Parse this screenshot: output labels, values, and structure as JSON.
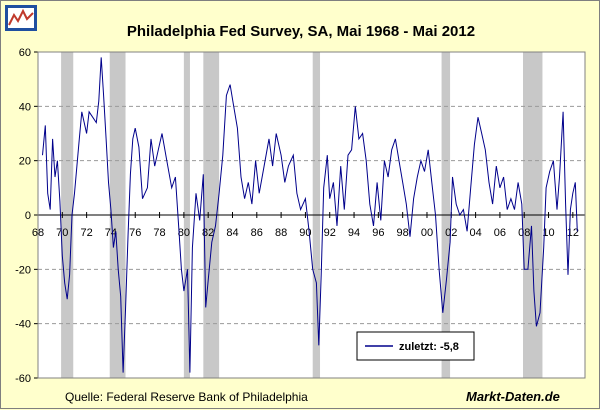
{
  "logo": {
    "name": "chart-logo-icon",
    "colors": [
      "#1f4fa0",
      "#c0392b"
    ]
  },
  "chart_data": {
    "type": "line",
    "title": "Philadelphia Fed Survey, SA, Mai 1968 - Mai 2012",
    "source": "Quelle: Federal Reserve Bank of Philadelphia",
    "watermark": "Markt-Daten.de",
    "xlim": [
      1968.0,
      2013.0
    ],
    "ylim": [
      -60,
      60
    ],
    "ytick_labels": [
      "60",
      "40",
      "20",
      "0",
      "-20",
      "-40",
      "-60"
    ],
    "ytick_values": [
      60,
      40,
      20,
      0,
      -20,
      -40,
      -60
    ],
    "xtick_labels": [
      "68",
      "70",
      "72",
      "74",
      "76",
      "78",
      "80",
      "82",
      "84",
      "86",
      "88",
      "90",
      "92",
      "94",
      "96",
      "98",
      "00",
      "02",
      "04",
      "06",
      "08",
      "10",
      "12"
    ],
    "xtick_values": [
      1968,
      1970,
      1972,
      1974,
      1976,
      1978,
      1980,
      1982,
      1984,
      1986,
      1988,
      1990,
      1992,
      1994,
      1996,
      1998,
      2000,
      2002,
      2004,
      2006,
      2008,
      2010,
      2012
    ],
    "grid": true,
    "legend_placement": "lower-right",
    "line_color": "#00008b",
    "recession_color": "#c8c8c8",
    "recessions": [
      [
        1969.9,
        1970.9
      ],
      [
        1973.9,
        1975.2
      ],
      [
        1980.0,
        1980.5
      ],
      [
        1981.6,
        1982.9
      ],
      [
        1990.6,
        1991.2
      ],
      [
        2001.2,
        2001.9
      ],
      [
        2007.9,
        2009.5
      ]
    ],
    "series": [
      {
        "name": "zuletzt: -5,8",
        "points": [
          [
            1968.37,
            22
          ],
          [
            1968.6,
            33
          ],
          [
            1968.8,
            8
          ],
          [
            1969.0,
            2
          ],
          [
            1969.2,
            28
          ],
          [
            1969.4,
            14
          ],
          [
            1969.6,
            20
          ],
          [
            1969.8,
            5
          ],
          [
            1970.0,
            -15
          ],
          [
            1970.2,
            -25
          ],
          [
            1970.4,
            -31
          ],
          [
            1970.6,
            -22
          ],
          [
            1970.8,
            0
          ],
          [
            1971.0,
            8
          ],
          [
            1971.2,
            18
          ],
          [
            1971.4,
            28
          ],
          [
            1971.6,
            38
          ],
          [
            1971.8,
            34
          ],
          [
            1972.0,
            30
          ],
          [
            1972.2,
            38
          ],
          [
            1972.5,
            36
          ],
          [
            1972.8,
            34
          ],
          [
            1973.0,
            42
          ],
          [
            1973.2,
            58
          ],
          [
            1973.4,
            44
          ],
          [
            1973.6,
            28
          ],
          [
            1973.8,
            12
          ],
          [
            1974.0,
            2
          ],
          [
            1974.2,
            -12
          ],
          [
            1974.4,
            -6
          ],
          [
            1974.6,
            -20
          ],
          [
            1974.8,
            -30
          ],
          [
            1975.0,
            -58
          ],
          [
            1975.2,
            -35
          ],
          [
            1975.4,
            -8
          ],
          [
            1975.6,
            15
          ],
          [
            1975.8,
            28
          ],
          [
            1976.0,
            32
          ],
          [
            1976.3,
            25
          ],
          [
            1976.6,
            6
          ],
          [
            1977.0,
            10
          ],
          [
            1977.3,
            28
          ],
          [
            1977.6,
            18
          ],
          [
            1977.9,
            24
          ],
          [
            1978.2,
            30
          ],
          [
            1978.6,
            20
          ],
          [
            1979.0,
            10
          ],
          [
            1979.3,
            14
          ],
          [
            1979.6,
            -6
          ],
          [
            1979.8,
            -20
          ],
          [
            1980.0,
            -28
          ],
          [
            1980.3,
            -20
          ],
          [
            1980.5,
            -58
          ],
          [
            1980.7,
            -12
          ],
          [
            1981.0,
            8
          ],
          [
            1981.3,
            -2
          ],
          [
            1981.6,
            15
          ],
          [
            1981.8,
            -34
          ],
          [
            1982.0,
            -24
          ],
          [
            1982.3,
            -10
          ],
          [
            1982.6,
            -4
          ],
          [
            1982.9,
            8
          ],
          [
            1983.2,
            22
          ],
          [
            1983.5,
            44
          ],
          [
            1983.8,
            48
          ],
          [
            1984.1,
            40
          ],
          [
            1984.4,
            32
          ],
          [
            1984.7,
            14
          ],
          [
            1985.0,
            6
          ],
          [
            1985.3,
            12
          ],
          [
            1985.6,
            4
          ],
          [
            1985.9,
            20
          ],
          [
            1986.2,
            8
          ],
          [
            1986.6,
            18
          ],
          [
            1987.0,
            28
          ],
          [
            1987.3,
            18
          ],
          [
            1987.6,
            30
          ],
          [
            1988.0,
            22
          ],
          [
            1988.3,
            12
          ],
          [
            1988.6,
            18
          ],
          [
            1989.0,
            22
          ],
          [
            1989.3,
            8
          ],
          [
            1989.6,
            2
          ],
          [
            1990.0,
            6
          ],
          [
            1990.3,
            -6
          ],
          [
            1990.6,
            -20
          ],
          [
            1990.9,
            -25
          ],
          [
            1991.1,
            -48
          ],
          [
            1991.3,
            -22
          ],
          [
            1991.5,
            10
          ],
          [
            1991.8,
            22
          ],
          [
            1992.0,
            6
          ],
          [
            1992.3,
            12
          ],
          [
            1992.6,
            -4
          ],
          [
            1992.9,
            18
          ],
          [
            1993.2,
            2
          ],
          [
            1993.5,
            22
          ],
          [
            1993.8,
            24
          ],
          [
            1994.1,
            40
          ],
          [
            1994.4,
            28
          ],
          [
            1994.7,
            30
          ],
          [
            1995.0,
            20
          ],
          [
            1995.3,
            4
          ],
          [
            1995.6,
            -4
          ],
          [
            1995.9,
            12
          ],
          [
            1996.2,
            -2
          ],
          [
            1996.5,
            20
          ],
          [
            1996.8,
            14
          ],
          [
            1997.1,
            24
          ],
          [
            1997.4,
            28
          ],
          [
            1997.7,
            20
          ],
          [
            1998.0,
            12
          ],
          [
            1998.3,
            4
          ],
          [
            1998.6,
            -8
          ],
          [
            1998.9,
            6
          ],
          [
            1999.2,
            14
          ],
          [
            1999.5,
            20
          ],
          [
            1999.8,
            16
          ],
          [
            2000.1,
            24
          ],
          [
            2000.4,
            12
          ],
          [
            2000.7,
            0
          ],
          [
            2001.0,
            -20
          ],
          [
            2001.3,
            -36
          ],
          [
            2001.6,
            -24
          ],
          [
            2001.9,
            -10
          ],
          [
            2002.1,
            14
          ],
          [
            2002.4,
            4
          ],
          [
            2002.7,
            0
          ],
          [
            2003.0,
            2
          ],
          [
            2003.3,
            -6
          ],
          [
            2003.6,
            10
          ],
          [
            2003.9,
            26
          ],
          [
            2004.2,
            36
          ],
          [
            2004.5,
            30
          ],
          [
            2004.8,
            24
          ],
          [
            2005.1,
            12
          ],
          [
            2005.4,
            4
          ],
          [
            2005.7,
            18
          ],
          [
            2006.0,
            10
          ],
          [
            2006.3,
            14
          ],
          [
            2006.6,
            2
          ],
          [
            2006.9,
            6
          ],
          [
            2007.2,
            2
          ],
          [
            2007.5,
            12
          ],
          [
            2007.8,
            4
          ],
          [
            2008.0,
            -20
          ],
          [
            2008.3,
            -20
          ],
          [
            2008.6,
            -4
          ],
          [
            2008.8,
            -28
          ],
          [
            2009.0,
            -41
          ],
          [
            2009.3,
            -36
          ],
          [
            2009.6,
            -12
          ],
          [
            2009.8,
            10
          ],
          [
            2010.1,
            16
          ],
          [
            2010.4,
            20
          ],
          [
            2010.7,
            2
          ],
          [
            2010.9,
            14
          ],
          [
            2011.2,
            38
          ],
          [
            2011.4,
            4
          ],
          [
            2011.6,
            -22
          ],
          [
            2011.8,
            2
          ],
          [
            2012.0,
            8
          ],
          [
            2012.2,
            12
          ],
          [
            2012.37,
            -6
          ]
        ]
      }
    ]
  }
}
